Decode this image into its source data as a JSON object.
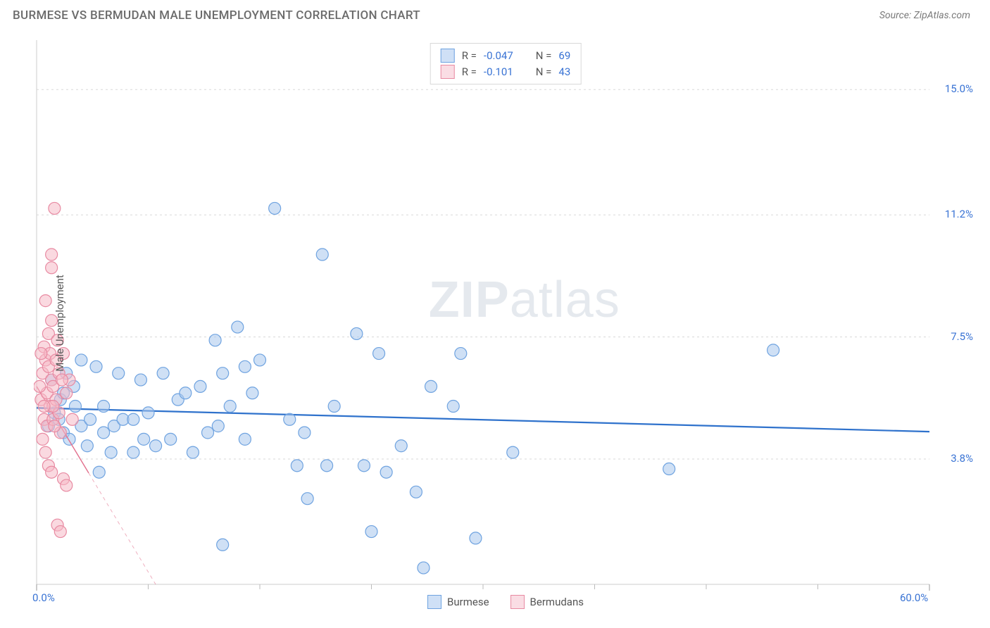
{
  "header": {
    "title": "BURMESE VS BERMUDAN MALE UNEMPLOYMENT CORRELATION CHART",
    "source_prefix": "Source: ",
    "source_name": "ZipAtlas.com"
  },
  "watermark": {
    "zip": "ZIP",
    "atlas": "atlas"
  },
  "chart": {
    "type": "scatter",
    "y_axis_label": "Male Unemployment",
    "background_color": "#ffffff",
    "grid_color": "#d8d8d8",
    "plot_border_color": "#cccccc",
    "xlim": [
      0,
      60
    ],
    "ylim": [
      0,
      16.5
    ],
    "x_ticks_major": [
      0,
      60
    ],
    "x_ticks_minor": [
      7.5,
      15,
      22.5,
      30,
      37.5,
      45,
      52.5
    ],
    "x_tick_labels": {
      "0": "0.0%",
      "60": "60.0%"
    },
    "y_gridlines": [
      3.8,
      7.5,
      11.2,
      15.0
    ],
    "y_tick_labels": {
      "3.8": "3.8%",
      "7.5": "7.5%",
      "11.2": "11.2%",
      "15.0": "15.0%"
    },
    "series": [
      {
        "name": "Burmese",
        "fill_color": "#a7c7ec",
        "fill_opacity": 0.55,
        "stroke_color": "#6fa3e0",
        "marker_radius": 8.5,
        "trend": {
          "slope": -0.012,
          "intercept": 5.35,
          "color": "#2f72cc",
          "width": 2.2,
          "dash": "none"
        },
        "r_value": "-0.047",
        "n_value": "69",
        "points": [
          [
            1.0,
            6.2
          ],
          [
            1.2,
            5.2
          ],
          [
            1.5,
            5.0
          ],
          [
            1.6,
            5.6
          ],
          [
            1.8,
            4.6
          ],
          [
            2.0,
            6.4
          ],
          [
            2.2,
            4.4
          ],
          [
            2.5,
            6.0
          ],
          [
            2.6,
            5.4
          ],
          [
            3.0,
            4.8
          ],
          [
            3.0,
            6.8
          ],
          [
            3.4,
            4.2
          ],
          [
            3.6,
            5.0
          ],
          [
            4.0,
            6.6
          ],
          [
            4.2,
            3.4
          ],
          [
            4.5,
            4.6
          ],
          [
            4.5,
            5.4
          ],
          [
            5.0,
            4.0
          ],
          [
            5.2,
            4.8
          ],
          [
            5.5,
            6.4
          ],
          [
            5.8,
            5.0
          ],
          [
            6.5,
            5.0
          ],
          [
            6.5,
            4.0
          ],
          [
            7.0,
            6.2
          ],
          [
            7.2,
            4.4
          ],
          [
            7.5,
            5.2
          ],
          [
            8.0,
            4.2
          ],
          [
            8.5,
            6.4
          ],
          [
            9.0,
            4.4
          ],
          [
            9.5,
            5.6
          ],
          [
            10.0,
            5.8
          ],
          [
            10.5,
            4.0
          ],
          [
            11.0,
            6.0
          ],
          [
            11.5,
            4.6
          ],
          [
            12.0,
            7.4
          ],
          [
            12.2,
            4.8
          ],
          [
            12.5,
            6.4
          ],
          [
            12.5,
            1.2
          ],
          [
            13.0,
            5.4
          ],
          [
            13.5,
            7.8
          ],
          [
            14.0,
            6.6
          ],
          [
            14.0,
            4.4
          ],
          [
            14.5,
            5.8
          ],
          [
            15.0,
            6.8
          ],
          [
            16.0,
            11.4
          ],
          [
            17.0,
            5.0
          ],
          [
            17.5,
            3.6
          ],
          [
            18.0,
            4.6
          ],
          [
            18.2,
            2.6
          ],
          [
            19.2,
            10.0
          ],
          [
            19.5,
            3.6
          ],
          [
            20.0,
            5.4
          ],
          [
            21.5,
            7.6
          ],
          [
            22.0,
            3.6
          ],
          [
            22.5,
            1.6
          ],
          [
            23.0,
            7.0
          ],
          [
            23.5,
            3.4
          ],
          [
            24.5,
            4.2
          ],
          [
            25.5,
            2.8
          ],
          [
            26.0,
            0.5
          ],
          [
            26.5,
            6.0
          ],
          [
            28.0,
            5.4
          ],
          [
            28.5,
            7.0
          ],
          [
            29.5,
            1.4
          ],
          [
            32.0,
            4.0
          ],
          [
            42.5,
            3.5
          ],
          [
            49.5,
            7.1
          ],
          [
            0.8,
            4.8
          ],
          [
            1.8,
            5.8
          ]
        ]
      },
      {
        "name": "Bermudans",
        "fill_color": "#f6b9c7",
        "fill_opacity": 0.55,
        "stroke_color": "#e88aa2",
        "marker_radius": 8.5,
        "trend": {
          "slope": -0.75,
          "intercept": 6.0,
          "color": "#e26f8c",
          "width": 1.4,
          "dash": "5,5"
        },
        "trend_solid_to_x": 3.5,
        "r_value": "-0.101",
        "n_value": "43",
        "points": [
          [
            0.3,
            5.6
          ],
          [
            0.4,
            6.4
          ],
          [
            0.5,
            5.0
          ],
          [
            0.5,
            7.2
          ],
          [
            0.6,
            6.8
          ],
          [
            0.6,
            8.6
          ],
          [
            0.7,
            4.8
          ],
          [
            0.7,
            5.8
          ],
          [
            0.8,
            6.6
          ],
          [
            0.8,
            7.6
          ],
          [
            0.9,
            5.4
          ],
          [
            0.9,
            7.0
          ],
          [
            1.0,
            6.2
          ],
          [
            1.0,
            8.0
          ],
          [
            1.0,
            9.6
          ],
          [
            1.0,
            10.0
          ],
          [
            1.1,
            5.0
          ],
          [
            1.1,
            6.0
          ],
          [
            1.2,
            11.4
          ],
          [
            1.3,
            5.6
          ],
          [
            1.3,
            6.8
          ],
          [
            1.4,
            7.4
          ],
          [
            1.5,
            5.2
          ],
          [
            1.5,
            6.4
          ],
          [
            1.6,
            4.6
          ],
          [
            1.8,
            7.0
          ],
          [
            1.8,
            3.2
          ],
          [
            2.0,
            3.0
          ],
          [
            1.4,
            1.8
          ],
          [
            1.6,
            1.6
          ],
          [
            0.4,
            4.4
          ],
          [
            0.6,
            4.0
          ],
          [
            0.8,
            3.6
          ],
          [
            2.2,
            6.2
          ],
          [
            1.1,
            5.4
          ],
          [
            2.0,
            5.8
          ],
          [
            2.4,
            5.0
          ],
          [
            0.2,
            6.0
          ],
          [
            0.3,
            7.0
          ],
          [
            1.2,
            4.8
          ],
          [
            1.0,
            3.4
          ],
          [
            0.5,
            5.4
          ],
          [
            1.7,
            6.2
          ]
        ]
      }
    ],
    "legend": {
      "swatch_border_blue": "#6fa3e0",
      "swatch_fill_blue": "#cfe0f6",
      "swatch_border_pink": "#e88aa2",
      "swatch_fill_pink": "#fadde4",
      "r_label": "R =",
      "n_label": "N ="
    },
    "bottom_legend": {
      "item1": "Burmese",
      "item2": "Bermudans"
    }
  }
}
